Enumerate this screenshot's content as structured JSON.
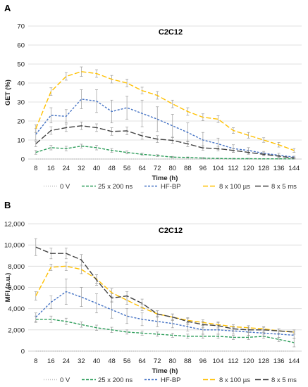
{
  "chart_data": [
    {
      "panel": "A",
      "type": "line",
      "title": "C2C12",
      "xlabel": "Time (h)",
      "ylabel": "GET (%)",
      "ylim": [
        0,
        70
      ],
      "yticks": [
        "0",
        "10",
        "20",
        "30",
        "40",
        "50",
        "60",
        "70"
      ],
      "x": [
        8,
        16,
        24,
        32,
        40,
        48,
        56,
        64,
        72,
        80,
        88,
        96,
        104,
        112,
        120,
        128,
        136,
        144
      ],
      "xtick_labels": [
        "8",
        "16",
        "24",
        "32",
        "40",
        "48",
        "56",
        "64",
        "72",
        "80",
        "88",
        "96",
        "104",
        "112",
        "120",
        "128",
        "136",
        "144"
      ],
      "grid": true,
      "legend": "bottom",
      "series": [
        {
          "name": "0 V",
          "color": "#bfbfbf",
          "dash": "1,2",
          "values": [
            0,
            0,
            0,
            0,
            0,
            0,
            0,
            0,
            0,
            0,
            0,
            0,
            0,
            0,
            0,
            0,
            0,
            0
          ],
          "errors": [
            0,
            0,
            0,
            0,
            0,
            0,
            0,
            0,
            0,
            0,
            0,
            0,
            0,
            0,
            0,
            0,
            0,
            0
          ]
        },
        {
          "name": "25 x 200 ns",
          "color": "#2e9e5b",
          "dash": "4,2",
          "values": [
            3.5,
            6,
            5.5,
            6.8,
            6,
            4.5,
            3.5,
            2.5,
            1.8,
            1,
            0.8,
            0.5,
            0.3,
            0.2,
            0.2,
            0.1,
            0.1,
            0.1
          ],
          "errors": [
            1,
            1.2,
            1.2,
            1,
            1.2,
            1,
            0.8,
            0.6,
            0.5,
            0.4,
            0.3,
            0.3,
            0.2,
            0.2,
            0.2,
            0.1,
            0.1,
            0.1
          ]
        },
        {
          "name": "HF-BP",
          "color": "#4472c4",
          "dash": "3,2",
          "values": [
            13,
            23,
            22.5,
            31.5,
            30.5,
            25,
            27,
            24,
            21,
            17.5,
            14,
            10,
            8,
            5.5,
            4.5,
            3,
            2,
            1
          ],
          "errors": [
            3,
            4,
            3.5,
            5,
            6,
            6,
            6,
            7,
            6.5,
            6,
            5,
            4,
            3,
            2,
            1.5,
            1,
            1,
            0.5
          ]
        },
        {
          "name": "8 x 100 µs",
          "color": "#ffc000",
          "dash": "7,3",
          "values": [
            16,
            35.5,
            43.5,
            46,
            45,
            42,
            40,
            36,
            33.5,
            29,
            25,
            22,
            21,
            15,
            12.5,
            10,
            7.5,
            4.5
          ],
          "errors": [
            2,
            2,
            2,
            2.5,
            2,
            2,
            2,
            1.8,
            2,
            2,
            2,
            1.8,
            1.8,
            1.5,
            1.5,
            1.2,
            1.2,
            1
          ]
        },
        {
          "name": "8 x 5 ms",
          "color": "#404040",
          "dash": "8,3",
          "values": [
            8,
            15,
            16.5,
            17.5,
            16.5,
            14.5,
            14.8,
            12.2,
            10.5,
            9.8,
            8,
            5.8,
            5.5,
            4.5,
            3.5,
            2.5,
            1.5,
            0.5
          ],
          "errors": [
            1.5,
            2,
            2,
            2,
            2,
            2,
            2,
            1.8,
            1.8,
            1.5,
            1.5,
            1.2,
            1.2,
            1,
            1,
            0.8,
            0.6,
            0.4
          ]
        }
      ]
    },
    {
      "panel": "B",
      "type": "line",
      "title": "C2C12",
      "xlabel": "Time (h)",
      "ylabel": "MFI (a.u.)",
      "ylim": [
        0,
        12000
      ],
      "yticks": [
        "0",
        "2,000",
        "4,000",
        "6,000",
        "8,000",
        "10,000",
        "12,000"
      ],
      "x": [
        8,
        16,
        24,
        32,
        40,
        48,
        56,
        64,
        72,
        80,
        88,
        96,
        104,
        112,
        120,
        128,
        136,
        144
      ],
      "xtick_labels": [
        "8",
        "16",
        "24",
        "32",
        "40",
        "48",
        "56",
        "64",
        "72",
        "80",
        "88",
        "96",
        "104",
        "112",
        "120",
        "128",
        "136",
        "144"
      ],
      "grid": true,
      "legend": "bottom",
      "series": [
        {
          "name": "0 V",
          "color": "#bfbfbf",
          "dash": "1,2",
          "values": [
            0,
            0,
            0,
            0,
            0,
            0,
            0,
            0,
            0,
            0,
            0,
            0,
            0,
            0,
            0,
            0,
            0,
            0
          ],
          "errors": [
            0,
            0,
            0,
            0,
            0,
            0,
            0,
            0,
            0,
            0,
            0,
            0,
            0,
            0,
            0,
            0,
            0,
            0
          ]
        },
        {
          "name": "25 x 200 ns",
          "color": "#2e9e5b",
          "dash": "4,2",
          "values": [
            3000,
            3000,
            2800,
            2500,
            2200,
            2000,
            1800,
            1700,
            1600,
            1500,
            1400,
            1400,
            1400,
            1300,
            1300,
            1400,
            1100,
            800
          ],
          "errors": [
            300,
            300,
            300,
            250,
            250,
            250,
            200,
            200,
            200,
            200,
            200,
            200,
            200,
            200,
            200,
            200,
            200,
            400
          ]
        },
        {
          "name": "HF-BP",
          "color": "#4472c4",
          "dash": "3,2",
          "values": [
            3200,
            4600,
            5600,
            5100,
            4500,
            3900,
            3300,
            3000,
            2800,
            2600,
            2300,
            2000,
            2000,
            1900,
            1800,
            1700,
            1600,
            1500
          ],
          "errors": [
            400,
            600,
            1200,
            900,
            900,
            800,
            700,
            600,
            500,
            400,
            400,
            400,
            400,
            300,
            300,
            300,
            300,
            300
          ]
        },
        {
          "name": "8 x 100 µs",
          "color": "#ffc000",
          "dash": "7,3",
          "values": [
            5200,
            7900,
            8000,
            7700,
            6800,
            5500,
            4800,
            4100,
            3500,
            3200,
            2900,
            2700,
            2500,
            2300,
            2200,
            2100,
            1900,
            1800
          ],
          "errors": [
            400,
            300,
            400,
            400,
            400,
            400,
            400,
            300,
            300,
            300,
            250,
            250,
            250,
            200,
            200,
            200,
            200,
            200
          ]
        },
        {
          "name": "8 x 5 ms",
          "color": "#404040",
          "dash": "8,3",
          "values": [
            9800,
            9200,
            9200,
            8600,
            6700,
            5000,
            5200,
            4500,
            3500,
            3200,
            2800,
            2500,
            2400,
            2100,
            2000,
            2000,
            1900,
            1800
          ],
          "errors": [
            800,
            500,
            500,
            500,
            500,
            400,
            400,
            400,
            300,
            300,
            300,
            300,
            300,
            250,
            250,
            250,
            200,
            200
          ]
        }
      ]
    }
  ]
}
